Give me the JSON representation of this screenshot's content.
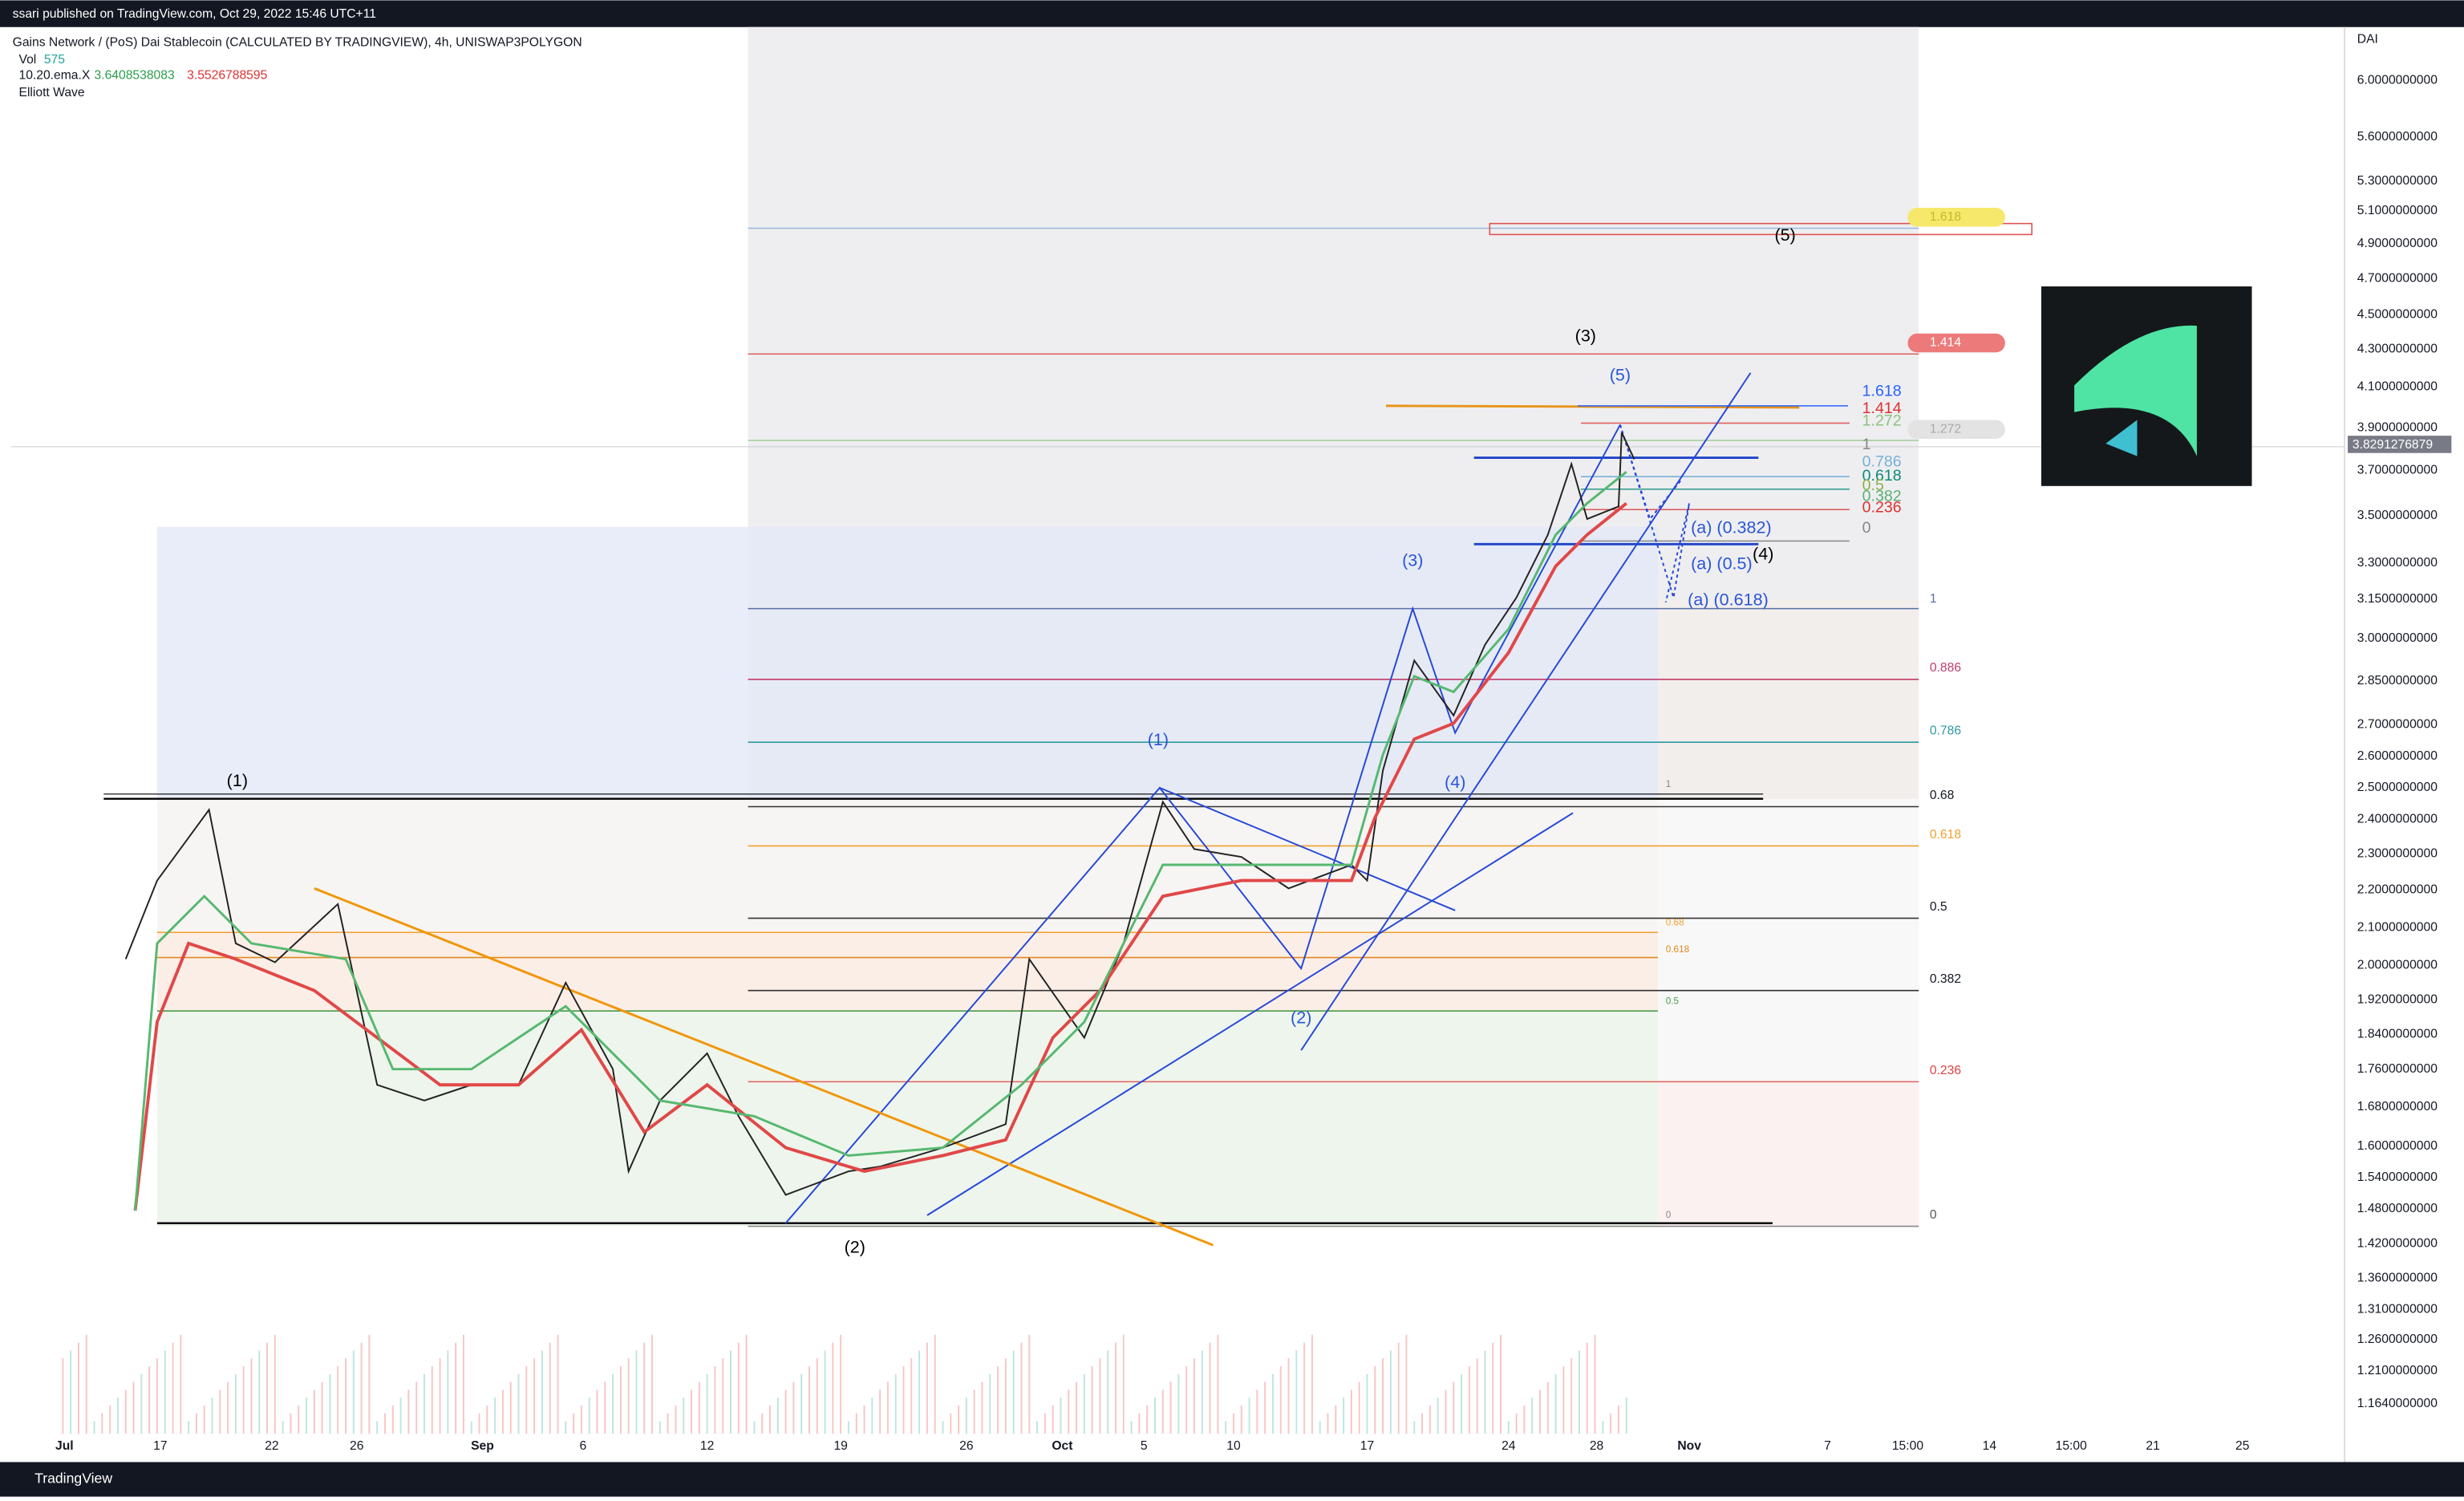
{
  "header": {
    "publisher": "ssari published on TradingView.com, Oct 29, 2022 15:46 UTC+11"
  },
  "legend": {
    "symbol": "Gains Network / (PoS) Dai Stablecoin (CALCULATED BY TRADINGVIEW), 4h, UNISWAP3POLYGON",
    "volume_label": "Vol",
    "volume_value": "575",
    "indicator": "10.20.ema.X",
    "ema_fast": "3.6408538083",
    "ema_slow": "3.5526788595",
    "study": "Elliott Wave"
  },
  "price_axis": {
    "currency": "DAI",
    "labels": [
      "6.0000000000",
      "5.6000000000",
      "5.3000000000",
      "5.1000000000",
      "4.9000000000",
      "4.7000000000",
      "4.5000000000",
      "4.3000000000",
      "4.1000000000",
      "3.9000000000",
      "3.7000000000",
      "3.5000000000",
      "3.3000000000",
      "3.1500000000",
      "3.0000000000",
      "2.8500000000",
      "2.7000000000",
      "2.6000000000",
      "2.5000000000",
      "2.4000000000",
      "2.3000000000",
      "2.2000000000",
      "2.1000000000",
      "2.0000000000",
      "1.9200000000",
      "1.8400000000",
      "1.7600000000",
      "1.6800000000",
      "1.6000000000",
      "1.5400000000",
      "1.4800000000",
      "1.4200000000",
      "1.3600000000",
      "1.3100000000",
      "1.2600000000",
      "1.2100000000",
      "1.1640000000"
    ],
    "current_price": "3.8291276879"
  },
  "time_axis": {
    "labels": [
      "Jul",
      "17",
      "22",
      "26",
      "Sep",
      "6",
      "12",
      "19",
      "26",
      "Oct",
      "5",
      "10",
      "17",
      "24",
      "28",
      "Nov",
      "7",
      "15:00",
      "14",
      "15:00",
      "21",
      "25"
    ]
  },
  "fib_main": [
    "1",
    "0.886",
    "0.786",
    "0.68",
    "0.618",
    "0.5",
    "0.382",
    "0.236",
    "0"
  ],
  "fib_small": [
    "1",
    "0.68",
    "0.618",
    "0.5",
    "0"
  ],
  "fib_upper": [
    "1.618",
    "1.414",
    "1.272",
    "1",
    "0.786",
    "0.618",
    "0.5",
    "0.382",
    "0.236",
    "0"
  ],
  "fib_badges": [
    "1.618",
    "1.414",
    "1.272"
  ],
  "waves_black": [
    "(1)",
    "(2)",
    "(3)",
    "(4)",
    "(5)"
  ],
  "waves_blue": [
    "(1)",
    "(2)",
    "(3)",
    "(4)",
    "(5)",
    "(a) (0.382)",
    "(a) (0.5)",
    "(a) (0.618)"
  ],
  "footer": {
    "brand": "TradingView"
  }
}
